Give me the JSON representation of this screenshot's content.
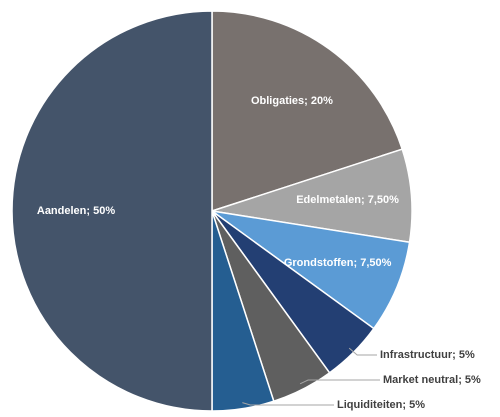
{
  "chart_data": {
    "type": "pie",
    "values": [
      20,
      7.5,
      7.5,
      5,
      5,
      5,
      50
    ],
    "value_labels": [
      "Obligaties; 20%",
      "Edelmetalen; 7,50%",
      "Grondstoffen; 7,50%",
      "Infrastructuur; 5%",
      "Market neutral; 5%",
      "Liquiditeiten; 5%",
      "Aandelen; 50%"
    ],
    "colors": [
      "#78716e",
      "#a5a5a5",
      "#5b9bd5",
      "#233f73",
      "#5f5f5f",
      "#255e91",
      "#44546a"
    ]
  }
}
